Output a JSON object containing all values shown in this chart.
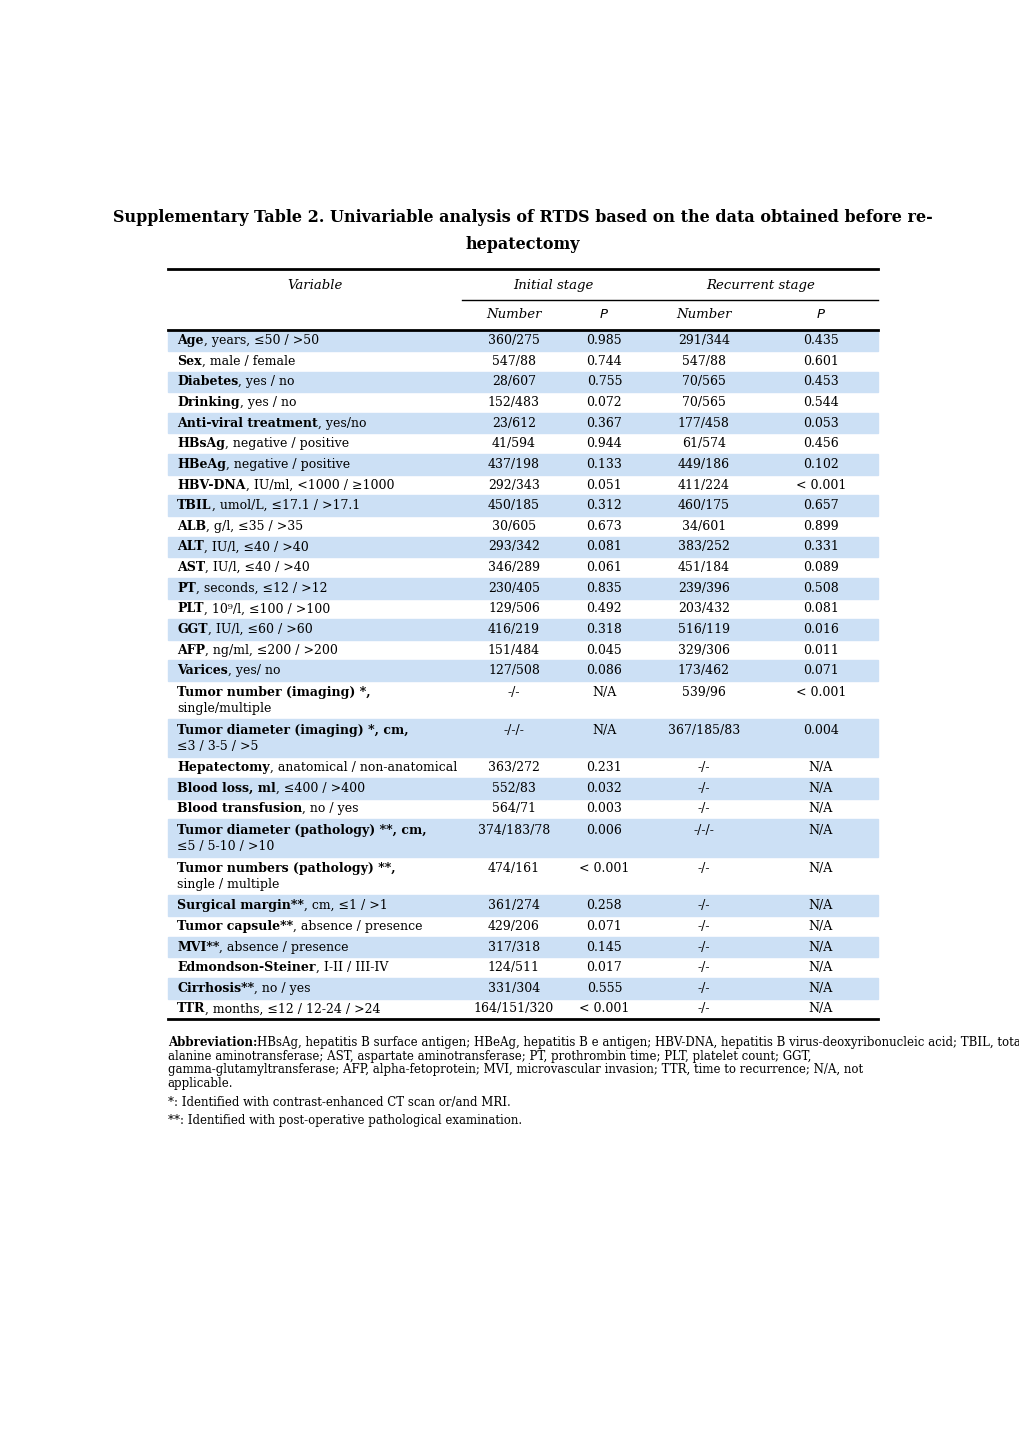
{
  "title_line1": "Supplementary Table 2. Univariable analysis of RTDS based on the data obtained before re-",
  "title_line2": "hepatectomy",
  "rows": [
    {
      "bold_part": "Age",
      "normal_part": ", years, ≤50 / >50",
      "num1": "360/275",
      "p1": "0.985",
      "num2": "291/344",
      "p2": "0.435",
      "shade": true,
      "multiline": false
    },
    {
      "bold_part": "Sex",
      "normal_part": ", male / female",
      "num1": "547/88",
      "p1": "0.744",
      "num2": "547/88",
      "p2": "0.601",
      "shade": false,
      "multiline": false
    },
    {
      "bold_part": "Diabetes",
      "normal_part": ", yes / no",
      "num1": "28/607",
      "p1": "0.755",
      "num2": "70/565",
      "p2": "0.453",
      "shade": true,
      "multiline": false
    },
    {
      "bold_part": "Drinking",
      "normal_part": ", yes / no",
      "num1": "152/483",
      "p1": "0.072",
      "num2": "70/565",
      "p2": "0.544",
      "shade": false,
      "multiline": false
    },
    {
      "bold_part": "Anti-viral treatment",
      "normal_part": ", yes/no",
      "num1": "23/612",
      "p1": "0.367",
      "num2": "177/458",
      "p2": "0.053",
      "shade": true,
      "multiline": false
    },
    {
      "bold_part": "HBsAg",
      "normal_part": ", negative / positive",
      "num1": "41/594",
      "p1": "0.944",
      "num2": "61/574",
      "p2": "0.456",
      "shade": false,
      "multiline": false
    },
    {
      "bold_part": "HBeAg",
      "normal_part": ", negative / positive",
      "num1": "437/198",
      "p1": "0.133",
      "num2": "449/186",
      "p2": "0.102",
      "shade": true,
      "multiline": false
    },
    {
      "bold_part": "HBV-DNA",
      "normal_part": ", IU/ml, <1000 / ≥1000",
      "num1": "292/343",
      "p1": "0.051",
      "num2": "411/224",
      "p2": "< 0.001",
      "shade": false,
      "multiline": false
    },
    {
      "bold_part": "TBIL",
      "normal_part": ", umol/L, ≤17.1 / >17.1",
      "num1": "450/185",
      "p1": "0.312",
      "num2": "460/175",
      "p2": "0.657",
      "shade": true,
      "multiline": false
    },
    {
      "bold_part": "ALB",
      "normal_part": ", g/l, ≤35 / >35",
      "num1": "30/605",
      "p1": "0.673",
      "num2": "34/601",
      "p2": "0.899",
      "shade": false,
      "multiline": false
    },
    {
      "bold_part": "ALT",
      "normal_part": ", IU/l, ≤40 / >40",
      "num1": "293/342",
      "p1": "0.081",
      "num2": "383/252",
      "p2": "0.331",
      "shade": true,
      "multiline": false
    },
    {
      "bold_part": "AST",
      "normal_part": ", IU/l, ≤40 / >40",
      "num1": "346/289",
      "p1": "0.061",
      "num2": "451/184",
      "p2": "0.089",
      "shade": false,
      "multiline": false
    },
    {
      "bold_part": "PT",
      "normal_part": ", seconds, ≤12 / >12",
      "num1": "230/405",
      "p1": "0.835",
      "num2": "239/396",
      "p2": "0.508",
      "shade": true,
      "multiline": false
    },
    {
      "bold_part": "PLT",
      "normal_part": ", 10⁹/l, ≤100 / >100",
      "num1": "129/506",
      "p1": "0.492",
      "num2": "203/432",
      "p2": "0.081",
      "shade": false,
      "multiline": false
    },
    {
      "bold_part": "GGT",
      "normal_part": ", IU/l, ≤60 / >60",
      "num1": "416/219",
      "p1": "0.318",
      "num2": "516/119",
      "p2": "0.016",
      "shade": true,
      "multiline": false
    },
    {
      "bold_part": "AFP",
      "normal_part": ", ng/ml, ≤200 / >200",
      "num1": "151/484",
      "p1": "0.045",
      "num2": "329/306",
      "p2": "0.011",
      "shade": false,
      "multiline": false
    },
    {
      "bold_part": "Varices",
      "normal_part": ", yes/ no",
      "num1": "127/508",
      "p1": "0.086",
      "num2": "173/462",
      "p2": "0.071",
      "shade": true,
      "multiline": false
    },
    {
      "bold_part": "Tumor number (imaging) *,",
      "normal_part": "",
      "line2": "single/multiple",
      "num1": "-/-",
      "p1": "N/A",
      "num2": "539/96",
      "p2": "< 0.001",
      "shade": false,
      "multiline": true
    },
    {
      "bold_part": "Tumor diameter (imaging) *, cm,",
      "normal_part": "",
      "line2": "≤3 / 3-5 / >5",
      "num1": "-/-/-",
      "p1": "N/A",
      "num2": "367/185/83",
      "p2": "0.004",
      "shade": true,
      "multiline": true
    },
    {
      "bold_part": "Hepatectomy",
      "normal_part": ", anatomical / non-anatomical",
      "num1": "363/272",
      "p1": "0.231",
      "num2": "-/-",
      "p2": "N/A",
      "shade": false,
      "multiline": false
    },
    {
      "bold_part": "Blood loss, ml",
      "normal_part": ", ≤400 / >400",
      "num1": "552/83",
      "p1": "0.032",
      "num2": "-/-",
      "p2": "N/A",
      "shade": true,
      "multiline": false
    },
    {
      "bold_part": "Blood transfusion",
      "normal_part": ", no / yes",
      "num1": "564/71",
      "p1": "0.003",
      "num2": "-/-",
      "p2": "N/A",
      "shade": false,
      "multiline": false
    },
    {
      "bold_part": "Tumor diameter (pathology) **, cm,",
      "normal_part": "",
      "line2": "≤5 / 5-10 / >10",
      "num1": "374/183/78",
      "p1": "0.006",
      "num2": "-/-/-",
      "p2": "N/A",
      "shade": true,
      "multiline": true
    },
    {
      "bold_part": "Tumor numbers (pathology) **,",
      "normal_part": "",
      "line2": "single / multiple",
      "num1": "474/161",
      "p1": "< 0.001",
      "num2": "-/-",
      "p2": "N/A",
      "shade": false,
      "multiline": true
    },
    {
      "bold_part": "Surgical margin**",
      "normal_part": ", cm, ≤1 / >1",
      "num1": "361/274",
      "p1": "0.258",
      "num2": "-/-",
      "p2": "N/A",
      "shade": true,
      "multiline": false
    },
    {
      "bold_part": "Tumor capsule**",
      "normal_part": ", absence / presence",
      "num1": "429/206",
      "p1": "0.071",
      "num2": "-/-",
      "p2": "N/A",
      "shade": false,
      "multiline": false
    },
    {
      "bold_part": "MVI**",
      "normal_part": ", absence / presence",
      "num1": "317/318",
      "p1": "0.145",
      "num2": "-/-",
      "p2": "N/A",
      "shade": true,
      "multiline": false
    },
    {
      "bold_part": "Edmondson-Steiner",
      "normal_part": ", I-II / III-IV",
      "num1": "124/511",
      "p1": "0.017",
      "num2": "-/-",
      "p2": "N/A",
      "shade": false,
      "multiline": false
    },
    {
      "bold_part": "Cirrhosis**",
      "normal_part": ", no / yes",
      "num1": "331/304",
      "p1": "0.555",
      "num2": "-/-",
      "p2": "N/A",
      "shade": true,
      "multiline": false
    },
    {
      "bold_part": "TTR",
      "normal_part": ", months, ≤12 / 12-24 / >24",
      "num1": "164/151/320",
      "p1": "< 0.001",
      "num2": "-/-",
      "p2": "N/A",
      "shade": false,
      "multiline": false
    }
  ],
  "abbr_bold": "Abbreviation:",
  "abbr_normal": " HBsAg, hepatitis B surface antigen; HBeAg, hepatitis B e antigen; HBV-DNA, hepatitis B virus-deoxyribonucleic acid; TBIL, total bilirubin; ALB, albumin; ALT, alanine aminotransferase; AST, aspartate aminotransferase; PT, prothrombin time; PLT, platelet count; GGT, gamma-glutamyltransferase; AFP, alpha-fetoprotein; MVI, microvascular invasion; TTR, time to recurrence; N/A, not applicable.",
  "note1": "*: Identified with contrast-enhanced CT scan or/and MRI.",
  "note2": "**: Identified with post-operative pathological examination.",
  "shade_color": "#cce0f5",
  "bg_color": "#ffffff"
}
